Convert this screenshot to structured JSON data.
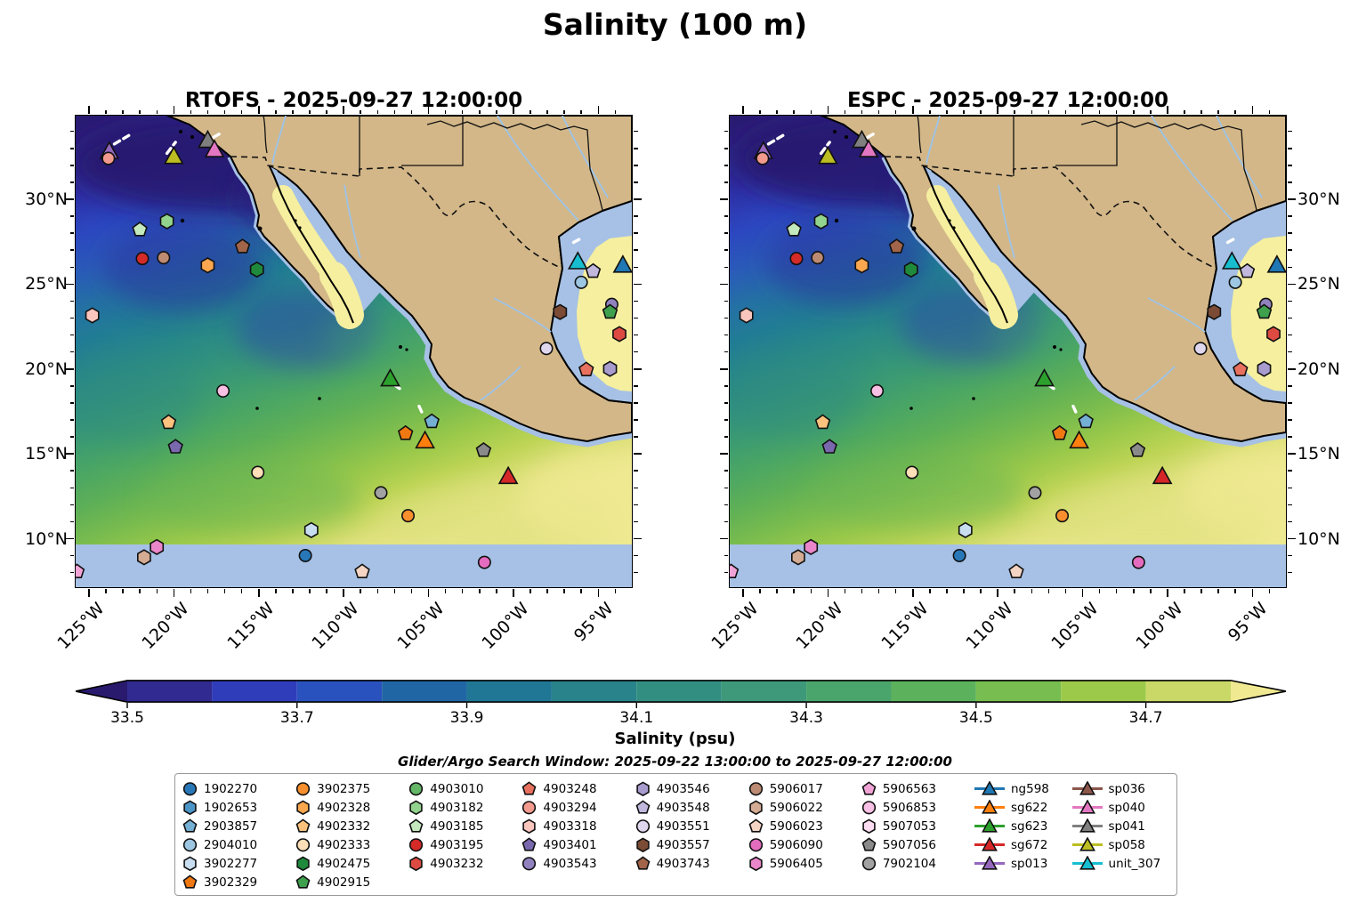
{
  "title": "Salinity (100 m)",
  "panels": [
    {
      "id": "rtofs",
      "title": "RTOFS - 2025-09-27 12:00:00"
    },
    {
      "id": "espc",
      "title": "ESPC - 2025-09-27 12:00:00"
    }
  ],
  "subtitle": "Glider/Argo Search Window: 2025-09-22 13:00:00 to 2025-09-27 12:00:00",
  "axis": {
    "lon_tick_labels": [
      "125°W",
      "120°W",
      "115°W",
      "110°W",
      "105°W",
      "100°W",
      "95°W"
    ],
    "lat_tick_labels": [
      "30°N",
      "25°N",
      "20°N",
      "15°N",
      "10°N"
    ]
  },
  "colorbar": {
    "label": "Salinity (psu)",
    "tick_labels": [
      "33.5",
      "33.7",
      "33.9",
      "34.1",
      "34.3",
      "34.5",
      "34.7"
    ],
    "under_color": "#2a1a6e",
    "over_color": "#f0e992",
    "segment_colors": [
      "#312a90",
      "#2f3dbb",
      "#2a52be",
      "#2166a4",
      "#1f7795",
      "#28838a",
      "#338e82",
      "#3d9979",
      "#4aa56c",
      "#5bb15c",
      "#77bd4f",
      "#9cc94a",
      "#c9d867"
    ]
  },
  "map_colors": {
    "land": "#d3b788",
    "shallow_nodata": "#a6c1e5",
    "gulf_high_salinity": "#f5ef9f",
    "coastline": "#000000",
    "river": "#9dc4e8",
    "glider_track": "#ffffff"
  },
  "legend": {
    "floats": [
      {
        "id": "1902270",
        "shape": "circle",
        "color": "#2878b8"
      },
      {
        "id": "1902653",
        "shape": "hexagon",
        "color": "#4a94c6"
      },
      {
        "id": "2903857",
        "shape": "pentagon",
        "color": "#74afd4"
      },
      {
        "id": "2904010",
        "shape": "circle",
        "color": "#9cc6e2"
      },
      {
        "id": "3902277",
        "shape": "hexagon",
        "color": "#c8def0"
      },
      {
        "id": "3902329",
        "shape": "pentagon",
        "color": "#ef7812"
      },
      {
        "id": "3902375",
        "shape": "circle",
        "color": "#f78f2e"
      },
      {
        "id": "4902328",
        "shape": "hexagon",
        "color": "#faa74f"
      },
      {
        "id": "4902332",
        "shape": "pentagon",
        "color": "#fcc27e"
      },
      {
        "id": "4902333",
        "shape": "circle",
        "color": "#fedfb8"
      },
      {
        "id": "4902475",
        "shape": "hexagon",
        "color": "#1f8a3b"
      },
      {
        "id": "4902915",
        "shape": "pentagon",
        "color": "#3fa04d"
      },
      {
        "id": "4903010",
        "shape": "circle",
        "color": "#63b767"
      },
      {
        "id": "4903182",
        "shape": "hexagon",
        "color": "#92d38d"
      },
      {
        "id": "4903185",
        "shape": "pentagon",
        "color": "#c4e9bd"
      },
      {
        "id": "4903195",
        "shape": "circle",
        "color": "#d42a28"
      },
      {
        "id": "4903232",
        "shape": "hexagon",
        "color": "#dd4a42"
      },
      {
        "id": "4903248",
        "shape": "pentagon",
        "color": "#e8705f"
      },
      {
        "id": "4903294",
        "shape": "circle",
        "color": "#f29a8d"
      },
      {
        "id": "4903318",
        "shape": "hexagon",
        "color": "#f9c5bd"
      },
      {
        "id": "4903401",
        "shape": "pentagon",
        "color": "#7a68ae"
      },
      {
        "id": "4903543",
        "shape": "circle",
        "color": "#9182bf"
      },
      {
        "id": "4903546",
        "shape": "hexagon",
        "color": "#a89cce"
      },
      {
        "id": "4903548",
        "shape": "pentagon",
        "color": "#c2b8dd"
      },
      {
        "id": "4903551",
        "shape": "circle",
        "color": "#ded7ee"
      },
      {
        "id": "4903557",
        "shape": "hexagon",
        "color": "#7c4b35"
      },
      {
        "id": "4903743",
        "shape": "pentagon",
        "color": "#a3654a"
      },
      {
        "id": "5906017",
        "shape": "circle",
        "color": "#bc8b72"
      },
      {
        "id": "5906022",
        "shape": "hexagon",
        "color": "#d4ab93"
      },
      {
        "id": "5906023",
        "shape": "pentagon",
        "color": "#f4d4c2"
      },
      {
        "id": "5906090",
        "shape": "circle",
        "color": "#e46cbe"
      },
      {
        "id": "5906405",
        "shape": "hexagon",
        "color": "#ea86c9"
      },
      {
        "id": "5906563",
        "shape": "pentagon",
        "color": "#f1a3d6"
      },
      {
        "id": "5906853",
        "shape": "circle",
        "color": "#f7c0e4"
      },
      {
        "id": "5907053",
        "shape": "hexagon",
        "color": "#fcdcf1"
      },
      {
        "id": "5907056",
        "shape": "pentagon",
        "color": "#8a8a8a"
      },
      {
        "id": "7902104",
        "shape": "circle",
        "color": "#a2a2a2"
      }
    ],
    "gliders": [
      {
        "id": "ng598",
        "color": "#1f77b4"
      },
      {
        "id": "sg622",
        "color": "#ff7f0e"
      },
      {
        "id": "sg623",
        "color": "#2ca02c"
      },
      {
        "id": "sg672",
        "color": "#d62728"
      },
      {
        "id": "sp013",
        "color": "#9467bd"
      },
      {
        "id": "sp036",
        "color": "#8c564b"
      },
      {
        "id": "sp040",
        "color": "#e377c2"
      },
      {
        "id": "sp041",
        "color": "#7f7f7f"
      },
      {
        "id": "sp058",
        "color": "#bcbd22"
      },
      {
        "id": "unit_307",
        "color": "#17becf"
      }
    ]
  },
  "chart_data": {
    "type": "heatmap",
    "title": "Salinity (100 m)",
    "subplots": [
      "RTOFS - 2025-09-27 12:00:00",
      "ESPC - 2025-09-27 12:00:00"
    ],
    "variable": "Salinity",
    "units": "psu",
    "depth_level": "100 m",
    "colorbar_levels": [
      33.5,
      33.6,
      33.7,
      33.8,
      33.9,
      34.0,
      34.1,
      34.2,
      34.3,
      34.4,
      34.5,
      34.6,
      34.7,
      34.8
    ],
    "colorbar_extend": "both",
    "lon_ticks_degW": [
      125,
      120,
      115,
      110,
      105,
      100,
      95
    ],
    "lat_ticks_degN": [
      10,
      15,
      20,
      25,
      30
    ],
    "extent": {
      "lon_w": [
        125.8,
        93.1
      ],
      "lat_n": [
        7.2,
        34.9
      ]
    },
    "search_window": {
      "start": "2025-09-22 13:00:00",
      "end": "2025-09-27 12:00:00"
    },
    "platforms": [
      {
        "id": "sp013",
        "kind": "glider",
        "lon_w": 123.8,
        "lat_n": 32.8
      },
      {
        "id": "4903294",
        "kind": "argo",
        "lon_w": 123.85,
        "lat_n": 32.4
      },
      {
        "id": "sp058",
        "kind": "glider",
        "lon_w": 120.0,
        "lat_n": 32.5
      },
      {
        "id": "sp041",
        "kind": "glider",
        "lon_w": 118.0,
        "lat_n": 33.45
      },
      {
        "id": "sp040",
        "kind": "glider",
        "lon_w": 117.6,
        "lat_n": 32.9
      },
      {
        "id": "4903185",
        "kind": "argo",
        "lon_w": 122.0,
        "lat_n": 28.2
      },
      {
        "id": "4903182",
        "kind": "argo",
        "lon_w": 120.4,
        "lat_n": 28.7
      },
      {
        "id": "4903195",
        "kind": "argo",
        "lon_w": 121.85,
        "lat_n": 26.5
      },
      {
        "id": "5906017",
        "kind": "argo",
        "lon_w": 120.6,
        "lat_n": 26.55
      },
      {
        "id": "4902328",
        "kind": "argo",
        "lon_w": 118.0,
        "lat_n": 26.1
      },
      {
        "id": "4903743",
        "kind": "argo",
        "lon_w": 115.95,
        "lat_n": 27.2
      },
      {
        "id": "4902475",
        "kind": "argo",
        "lon_w": 115.1,
        "lat_n": 25.85
      },
      {
        "id": "4903318",
        "kind": "argo",
        "lon_w": 124.8,
        "lat_n": 23.15
      },
      {
        "id": "5906853",
        "kind": "argo",
        "lon_w": 117.1,
        "lat_n": 18.7
      },
      {
        "id": "4902332",
        "kind": "argo",
        "lon_w": 120.3,
        "lat_n": 16.85
      },
      {
        "id": "4903401",
        "kind": "argo",
        "lon_w": 119.9,
        "lat_n": 15.4
      },
      {
        "id": "4902333",
        "kind": "argo",
        "lon_w": 115.05,
        "lat_n": 13.9
      },
      {
        "id": "3902277",
        "kind": "argo",
        "lon_w": 111.9,
        "lat_n": 10.5
      },
      {
        "id": "5906405",
        "kind": "argo",
        "lon_w": 121.0,
        "lat_n": 9.5
      },
      {
        "id": "5906022",
        "kind": "argo",
        "lon_w": 121.75,
        "lat_n": 8.9
      },
      {
        "id": "1902270",
        "kind": "argo",
        "lon_w": 112.25,
        "lat_n": 9.0
      },
      {
        "id": "5906023",
        "kind": "argo",
        "lon_w": 108.9,
        "lat_n": 8.05
      },
      {
        "id": "5906090",
        "kind": "argo",
        "lon_w": 101.7,
        "lat_n": 8.6
      },
      {
        "id": "5906563",
        "kind": "argo",
        "lon_w": 125.7,
        "lat_n": 8.05
      },
      {
        "id": "sg623",
        "kind": "glider",
        "lon_w": 107.25,
        "lat_n": 19.4
      },
      {
        "id": "2903857",
        "kind": "argo",
        "lon_w": 104.8,
        "lat_n": 16.9
      },
      {
        "id": "3902329",
        "kind": "argo",
        "lon_w": 106.35,
        "lat_n": 16.2
      },
      {
        "id": "sg622",
        "kind": "glider",
        "lon_w": 105.2,
        "lat_n": 15.75
      },
      {
        "id": "5907056",
        "kind": "argo",
        "lon_w": 101.75,
        "lat_n": 15.2
      },
      {
        "id": "sg672",
        "kind": "glider",
        "lon_w": 100.3,
        "lat_n": 13.65
      },
      {
        "id": "7902104",
        "kind": "argo",
        "lon_w": 107.8,
        "lat_n": 12.7
      },
      {
        "id": "3902375",
        "kind": "argo",
        "lon_w": 106.2,
        "lat_n": 11.35
      },
      {
        "id": "unit_307",
        "kind": "glider",
        "lon_w": 96.2,
        "lat_n": 26.3
      },
      {
        "id": "4903548",
        "kind": "argo",
        "lon_w": 95.3,
        "lat_n": 25.75
      },
      {
        "id": "ng598",
        "kind": "glider",
        "lon_w": 93.55,
        "lat_n": 26.1
      },
      {
        "id": "2904010",
        "kind": "argo",
        "lon_w": 96.0,
        "lat_n": 25.1
      },
      {
        "id": "4903543",
        "kind": "argo",
        "lon_w": 94.2,
        "lat_n": 23.8
      },
      {
        "id": "4902915",
        "kind": "argo",
        "lon_w": 94.3,
        "lat_n": 23.35
      },
      {
        "id": "4903557",
        "kind": "argo",
        "lon_w": 97.25,
        "lat_n": 23.35
      },
      {
        "id": "4903232",
        "kind": "argo",
        "lon_w": 93.75,
        "lat_n": 22.05
      },
      {
        "id": "4903551",
        "kind": "argo",
        "lon_w": 98.05,
        "lat_n": 21.2
      },
      {
        "id": "4903248",
        "kind": "argo",
        "lon_w": 95.7,
        "lat_n": 19.95
      },
      {
        "id": "4903546",
        "kind": "argo",
        "lon_w": 94.3,
        "lat_n": 20.0
      }
    ],
    "glider_track_segments": [
      {
        "from": {
          "lon_w": 123.5,
          "lat_n": 33.25
        },
        "to": {
          "lon_w": 122.65,
          "lat_n": 33.75
        }
      },
      {
        "from": {
          "lon_w": 120.4,
          "lat_n": 32.7
        },
        "to": {
          "lon_w": 119.9,
          "lat_n": 33.35
        }
      },
      {
        "from": {
          "lon_w": 117.65,
          "lat_n": 33.65
        },
        "to": {
          "lon_w": 117.3,
          "lat_n": 33.85
        }
      },
      {
        "from": {
          "lon_w": 107.0,
          "lat_n": 19.05
        },
        "to": {
          "lon_w": 106.5,
          "lat_n": 18.7
        }
      },
      {
        "from": {
          "lon_w": 105.55,
          "lat_n": 17.8
        },
        "to": {
          "lon_w": 105.3,
          "lat_n": 17.25
        }
      },
      {
        "from": {
          "lon_w": 96.45,
          "lat_n": 27.45
        },
        "to": {
          "lon_w": 95.9,
          "lat_n": 27.75
        }
      }
    ]
  }
}
